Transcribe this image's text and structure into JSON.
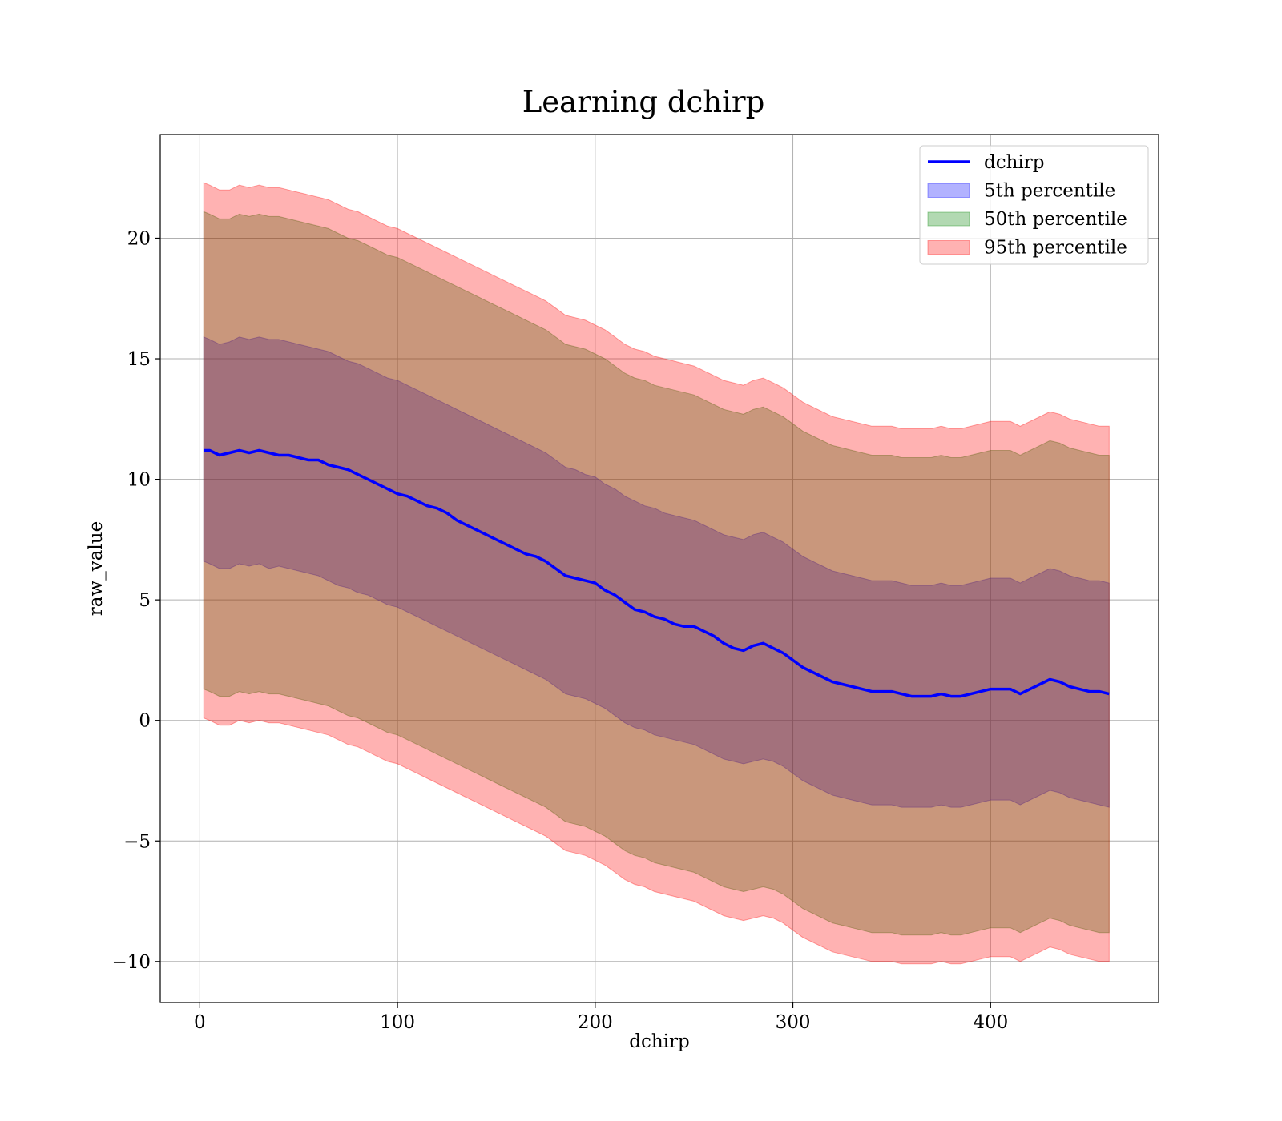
{
  "chart_data": {
    "type": "line",
    "title": "Learning dchirp",
    "xlabel": "dchirp",
    "ylabel": "raw_value",
    "xlim": [
      -20,
      485
    ],
    "ylim": [
      -11.7,
      24.3
    ],
    "xticks": [
      0,
      100,
      200,
      300,
      400
    ],
    "xtick_labels": [
      "0",
      "100",
      "200",
      "300",
      "400"
    ],
    "yticks": [
      -10,
      -5,
      0,
      5,
      10,
      15,
      20
    ],
    "ytick_labels": [
      "−10",
      "−5",
      "0",
      "5",
      "10",
      "15",
      "20"
    ],
    "grid": true,
    "legend_position": "top-right",
    "colors": {
      "line": "#0000ff",
      "band_5th": "#0000ff",
      "band_50th": "#008000",
      "band_95th": "#ff0000"
    },
    "series": [
      {
        "name": "dchirp",
        "kind": "line",
        "x": [
          2,
          5,
          10,
          15,
          20,
          25,
          30,
          35,
          40,
          45,
          50,
          55,
          60,
          65,
          70,
          75,
          80,
          85,
          90,
          95,
          100,
          105,
          110,
          115,
          120,
          125,
          130,
          135,
          140,
          145,
          150,
          155,
          160,
          165,
          170,
          175,
          180,
          185,
          190,
          195,
          200,
          205,
          210,
          215,
          220,
          225,
          230,
          235,
          240,
          245,
          250,
          255,
          260,
          265,
          270,
          275,
          280,
          285,
          290,
          295,
          300,
          305,
          310,
          315,
          320,
          325,
          330,
          335,
          340,
          345,
          350,
          355,
          360,
          365,
          370,
          375,
          380,
          385,
          390,
          395,
          400,
          405,
          410,
          415,
          420,
          425,
          430,
          435,
          440,
          445,
          450,
          455,
          460
        ],
        "y": [
          11.2,
          11.2,
          11.0,
          11.1,
          11.2,
          11.1,
          11.2,
          11.1,
          11.0,
          11.0,
          10.9,
          10.8,
          10.8,
          10.6,
          10.5,
          10.4,
          10.2,
          10.0,
          9.8,
          9.6,
          9.4,
          9.3,
          9.1,
          8.9,
          8.8,
          8.6,
          8.3,
          8.1,
          7.9,
          7.7,
          7.5,
          7.3,
          7.1,
          6.9,
          6.8,
          6.6,
          6.3,
          6.0,
          5.9,
          5.8,
          5.7,
          5.4,
          5.2,
          4.9,
          4.6,
          4.5,
          4.3,
          4.2,
          4.0,
          3.9,
          3.9,
          3.7,
          3.5,
          3.2,
          3.0,
          2.9,
          3.1,
          3.2,
          3.0,
          2.8,
          2.5,
          2.2,
          2.0,
          1.8,
          1.6,
          1.5,
          1.4,
          1.3,
          1.2,
          1.2,
          1.2,
          1.1,
          1.0,
          1.0,
          1.0,
          1.1,
          1.0,
          1.0,
          1.1,
          1.2,
          1.3,
          1.3,
          1.3,
          1.1,
          1.3,
          1.5,
          1.7,
          1.6,
          1.4,
          1.3,
          1.2,
          1.2,
          1.1
        ]
      },
      {
        "name": "5th percentile",
        "kind": "band",
        "x": [
          2,
          5,
          10,
          15,
          20,
          25,
          30,
          35,
          40,
          45,
          50,
          55,
          60,
          65,
          70,
          75,
          80,
          85,
          90,
          95,
          100,
          105,
          110,
          115,
          120,
          125,
          130,
          135,
          140,
          145,
          150,
          155,
          160,
          165,
          170,
          175,
          180,
          185,
          190,
          195,
          200,
          205,
          210,
          215,
          220,
          225,
          230,
          235,
          240,
          245,
          250,
          255,
          260,
          265,
          270,
          275,
          280,
          285,
          290,
          295,
          300,
          305,
          310,
          315,
          320,
          325,
          330,
          335,
          340,
          345,
          350,
          355,
          360,
          365,
          370,
          375,
          380,
          385,
          390,
          395,
          400,
          405,
          410,
          415,
          420,
          425,
          430,
          435,
          440,
          445,
          450,
          455,
          460
        ],
        "lower": [
          6.6,
          6.5,
          6.3,
          6.3,
          6.5,
          6.4,
          6.5,
          6.3,
          6.4,
          6.3,
          6.2,
          6.1,
          6.0,
          5.8,
          5.6,
          5.5,
          5.3,
          5.2,
          5.0,
          4.8,
          4.7,
          4.5,
          4.3,
          4.1,
          3.9,
          3.7,
          3.5,
          3.3,
          3.1,
          2.9,
          2.7,
          2.5,
          2.3,
          2.1,
          1.9,
          1.7,
          1.4,
          1.1,
          1.0,
          0.9,
          0.7,
          0.5,
          0.2,
          -0.1,
          -0.3,
          -0.4,
          -0.6,
          -0.7,
          -0.8,
          -0.9,
          -1.0,
          -1.2,
          -1.4,
          -1.6,
          -1.7,
          -1.8,
          -1.7,
          -1.6,
          -1.7,
          -1.9,
          -2.2,
          -2.5,
          -2.7,
          -2.9,
          -3.1,
          -3.2,
          -3.3,
          -3.4,
          -3.5,
          -3.5,
          -3.5,
          -3.6,
          -3.6,
          -3.6,
          -3.6,
          -3.5,
          -3.6,
          -3.6,
          -3.5,
          -3.4,
          -3.3,
          -3.3,
          -3.3,
          -3.5,
          -3.3,
          -3.1,
          -2.9,
          -3.0,
          -3.2,
          -3.3,
          -3.4,
          -3.5,
          -3.6
        ],
        "upper": [
          15.9,
          15.8,
          15.6,
          15.7,
          15.9,
          15.8,
          15.9,
          15.8,
          15.8,
          15.7,
          15.6,
          15.5,
          15.4,
          15.3,
          15.1,
          14.9,
          14.8,
          14.6,
          14.4,
          14.2,
          14.1,
          13.9,
          13.7,
          13.5,
          13.3,
          13.1,
          12.9,
          12.7,
          12.5,
          12.3,
          12.1,
          11.9,
          11.7,
          11.5,
          11.3,
          11.1,
          10.8,
          10.5,
          10.4,
          10.2,
          10.1,
          9.8,
          9.6,
          9.3,
          9.1,
          8.9,
          8.8,
          8.6,
          8.5,
          8.4,
          8.3,
          8.1,
          7.9,
          7.7,
          7.6,
          7.5,
          7.7,
          7.8,
          7.6,
          7.4,
          7.1,
          6.8,
          6.6,
          6.4,
          6.2,
          6.1,
          6.0,
          5.9,
          5.8,
          5.8,
          5.8,
          5.7,
          5.6,
          5.6,
          5.6,
          5.7,
          5.6,
          5.6,
          5.7,
          5.8,
          5.9,
          5.9,
          5.9,
          5.7,
          5.9,
          6.1,
          6.3,
          6.2,
          6.0,
          5.9,
          5.8,
          5.8,
          5.7
        ]
      },
      {
        "name": "50th percentile",
        "kind": "band",
        "x": [
          2,
          5,
          10,
          15,
          20,
          25,
          30,
          35,
          40,
          45,
          50,
          55,
          60,
          65,
          70,
          75,
          80,
          85,
          90,
          95,
          100,
          105,
          110,
          115,
          120,
          125,
          130,
          135,
          140,
          145,
          150,
          155,
          160,
          165,
          170,
          175,
          180,
          185,
          190,
          195,
          200,
          205,
          210,
          215,
          220,
          225,
          230,
          235,
          240,
          245,
          250,
          255,
          260,
          265,
          270,
          275,
          280,
          285,
          290,
          295,
          300,
          305,
          310,
          315,
          320,
          325,
          330,
          335,
          340,
          345,
          350,
          355,
          360,
          365,
          370,
          375,
          380,
          385,
          390,
          395,
          400,
          405,
          410,
          415,
          420,
          425,
          430,
          435,
          440,
          445,
          450,
          455,
          460
        ],
        "lower": [
          1.3,
          1.2,
          1.0,
          1.0,
          1.2,
          1.1,
          1.2,
          1.1,
          1.1,
          1.0,
          0.9,
          0.8,
          0.7,
          0.6,
          0.4,
          0.2,
          0.1,
          -0.1,
          -0.3,
          -0.5,
          -0.6,
          -0.8,
          -1.0,
          -1.2,
          -1.4,
          -1.6,
          -1.8,
          -2.0,
          -2.2,
          -2.4,
          -2.6,
          -2.8,
          -3.0,
          -3.2,
          -3.4,
          -3.6,
          -3.9,
          -4.2,
          -4.3,
          -4.4,
          -4.6,
          -4.8,
          -5.1,
          -5.4,
          -5.6,
          -5.7,
          -5.9,
          -6.0,
          -6.1,
          -6.2,
          -6.3,
          -6.5,
          -6.7,
          -6.9,
          -7.0,
          -7.1,
          -7.0,
          -6.9,
          -7.0,
          -7.2,
          -7.5,
          -7.8,
          -8.0,
          -8.2,
          -8.4,
          -8.5,
          -8.6,
          -8.7,
          -8.8,
          -8.8,
          -8.8,
          -8.9,
          -8.9,
          -8.9,
          -8.9,
          -8.8,
          -8.9,
          -8.9,
          -8.8,
          -8.7,
          -8.6,
          -8.6,
          -8.6,
          -8.8,
          -8.6,
          -8.4,
          -8.2,
          -8.3,
          -8.5,
          -8.6,
          -8.7,
          -8.8,
          -8.8
        ],
        "upper": [
          21.1,
          21.0,
          20.8,
          20.8,
          21.0,
          20.9,
          21.0,
          20.9,
          20.9,
          20.8,
          20.7,
          20.6,
          20.5,
          20.4,
          20.2,
          20.0,
          19.9,
          19.7,
          19.5,
          19.3,
          19.2,
          19.0,
          18.8,
          18.6,
          18.4,
          18.2,
          18.0,
          17.8,
          17.6,
          17.4,
          17.2,
          17.0,
          16.8,
          16.6,
          16.4,
          16.2,
          15.9,
          15.6,
          15.5,
          15.4,
          15.2,
          15.0,
          14.7,
          14.4,
          14.2,
          14.1,
          13.9,
          13.8,
          13.7,
          13.6,
          13.5,
          13.3,
          13.1,
          12.9,
          12.8,
          12.7,
          12.9,
          13.0,
          12.8,
          12.6,
          12.3,
          12.0,
          11.8,
          11.6,
          11.4,
          11.3,
          11.2,
          11.1,
          11.0,
          11.0,
          11.0,
          10.9,
          10.9,
          10.9,
          10.9,
          11.0,
          10.9,
          10.9,
          11.0,
          11.1,
          11.2,
          11.2,
          11.2,
          11.0,
          11.2,
          11.4,
          11.6,
          11.5,
          11.3,
          11.2,
          11.1,
          11.0,
          11.0
        ]
      },
      {
        "name": "95th percentile",
        "kind": "band",
        "x": [
          2,
          5,
          10,
          15,
          20,
          25,
          30,
          35,
          40,
          45,
          50,
          55,
          60,
          65,
          70,
          75,
          80,
          85,
          90,
          95,
          100,
          105,
          110,
          115,
          120,
          125,
          130,
          135,
          140,
          145,
          150,
          155,
          160,
          165,
          170,
          175,
          180,
          185,
          190,
          195,
          200,
          205,
          210,
          215,
          220,
          225,
          230,
          235,
          240,
          245,
          250,
          255,
          260,
          265,
          270,
          275,
          280,
          285,
          290,
          295,
          300,
          305,
          310,
          315,
          320,
          325,
          330,
          335,
          340,
          345,
          350,
          355,
          360,
          365,
          370,
          375,
          380,
          385,
          390,
          395,
          400,
          405,
          410,
          415,
          420,
          425,
          430,
          435,
          440,
          445,
          450,
          455,
          460
        ],
        "lower": [
          0.1,
          0.0,
          -0.2,
          -0.2,
          0.0,
          -0.1,
          0.0,
          -0.1,
          -0.1,
          -0.2,
          -0.3,
          -0.4,
          -0.5,
          -0.6,
          -0.8,
          -1.0,
          -1.1,
          -1.3,
          -1.5,
          -1.7,
          -1.8,
          -2.0,
          -2.2,
          -2.4,
          -2.6,
          -2.8,
          -3.0,
          -3.2,
          -3.4,
          -3.6,
          -3.8,
          -4.0,
          -4.2,
          -4.4,
          -4.6,
          -4.8,
          -5.1,
          -5.4,
          -5.5,
          -5.6,
          -5.8,
          -6.0,
          -6.3,
          -6.6,
          -6.8,
          -6.9,
          -7.1,
          -7.2,
          -7.3,
          -7.4,
          -7.5,
          -7.7,
          -7.9,
          -8.1,
          -8.2,
          -8.3,
          -8.2,
          -8.1,
          -8.2,
          -8.4,
          -8.7,
          -9.0,
          -9.2,
          -9.4,
          -9.6,
          -9.7,
          -9.8,
          -9.9,
          -10.0,
          -10.0,
          -10.0,
          -10.1,
          -10.1,
          -10.1,
          -10.1,
          -10.0,
          -10.1,
          -10.1,
          -10.0,
          -9.9,
          -9.8,
          -9.8,
          -9.8,
          -10.0,
          -9.8,
          -9.6,
          -9.4,
          -9.5,
          -9.7,
          -9.8,
          -9.9,
          -10.0,
          -10.0
        ],
        "upper": [
          22.3,
          22.2,
          22.0,
          22.0,
          22.2,
          22.1,
          22.2,
          22.1,
          22.1,
          22.0,
          21.9,
          21.8,
          21.7,
          21.6,
          21.4,
          21.2,
          21.1,
          20.9,
          20.7,
          20.5,
          20.4,
          20.2,
          20.0,
          19.8,
          19.6,
          19.4,
          19.2,
          19.0,
          18.8,
          18.6,
          18.4,
          18.2,
          18.0,
          17.8,
          17.6,
          17.4,
          17.1,
          16.8,
          16.7,
          16.6,
          16.4,
          16.2,
          15.9,
          15.6,
          15.4,
          15.3,
          15.1,
          15.0,
          14.9,
          14.8,
          14.7,
          14.5,
          14.3,
          14.1,
          14.0,
          13.9,
          14.1,
          14.2,
          14.0,
          13.8,
          13.5,
          13.2,
          13.0,
          12.8,
          12.6,
          12.5,
          12.4,
          12.3,
          12.2,
          12.2,
          12.2,
          12.1,
          12.1,
          12.1,
          12.1,
          12.2,
          12.1,
          12.1,
          12.2,
          12.3,
          12.4,
          12.4,
          12.4,
          12.2,
          12.4,
          12.6,
          12.8,
          12.7,
          12.5,
          12.4,
          12.3,
          12.2,
          12.2
        ]
      }
    ]
  }
}
